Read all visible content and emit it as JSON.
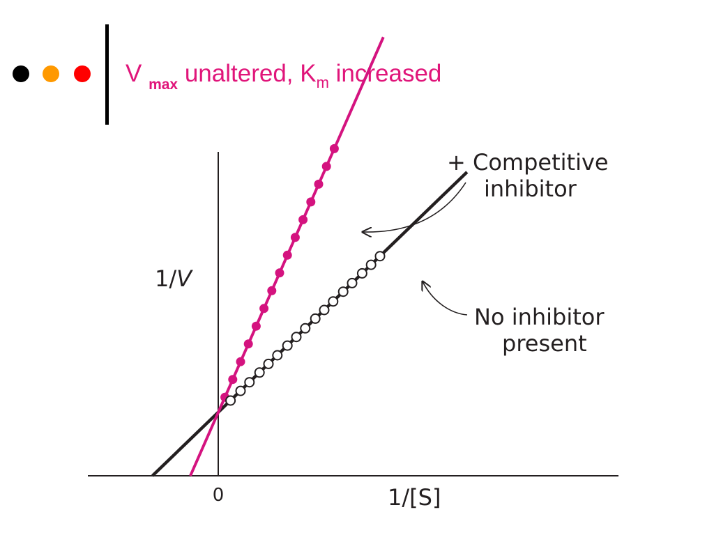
{
  "bullets": [
    {
      "name": "black",
      "color": "#000000"
    },
    {
      "name": "orange",
      "color": "#ff9900"
    },
    {
      "name": "red",
      "color": "#ff0000"
    }
  ],
  "title": {
    "part1": "V ",
    "sub1": "max",
    "part2": " unaltered, K",
    "sub2": "m",
    "part3": " increased",
    "color": "#e0157a"
  },
  "axes": {
    "x_label": "1/[S]",
    "y_label_prefix": "1/",
    "y_label_var": "V",
    "origin_label": "0"
  },
  "annotations": {
    "competitive_line1": "+ Competitive",
    "competitive_line2": "inhibitor",
    "none_line1": "No inhibitor",
    "none_line2": "present"
  },
  "chart_data": {
    "type": "scatter",
    "series": [
      {
        "name": "+ Competitive inhibitor",
        "color": "#d4137f",
        "marker": "filled-circle",
        "y_intercept": 1.0,
        "slope": 4.0,
        "x_intercept": -0.25,
        "x": [
          0.06,
          0.13,
          0.2,
          0.27,
          0.34,
          0.41,
          0.48,
          0.55,
          0.62,
          0.69,
          0.76,
          0.83,
          0.9,
          0.97,
          1.04
        ]
      },
      {
        "name": "No inhibitor present",
        "color": "#231f20",
        "marker": "open-circle",
        "y_intercept": 1.0,
        "slope": 1.7,
        "x_intercept": -0.59,
        "x": [
          0.11,
          0.2,
          0.28,
          0.37,
          0.45,
          0.53,
          0.62,
          0.7,
          0.78,
          0.87,
          0.95,
          1.03,
          1.12,
          1.2,
          1.29,
          1.37,
          1.45
        ]
      }
    ]
  }
}
